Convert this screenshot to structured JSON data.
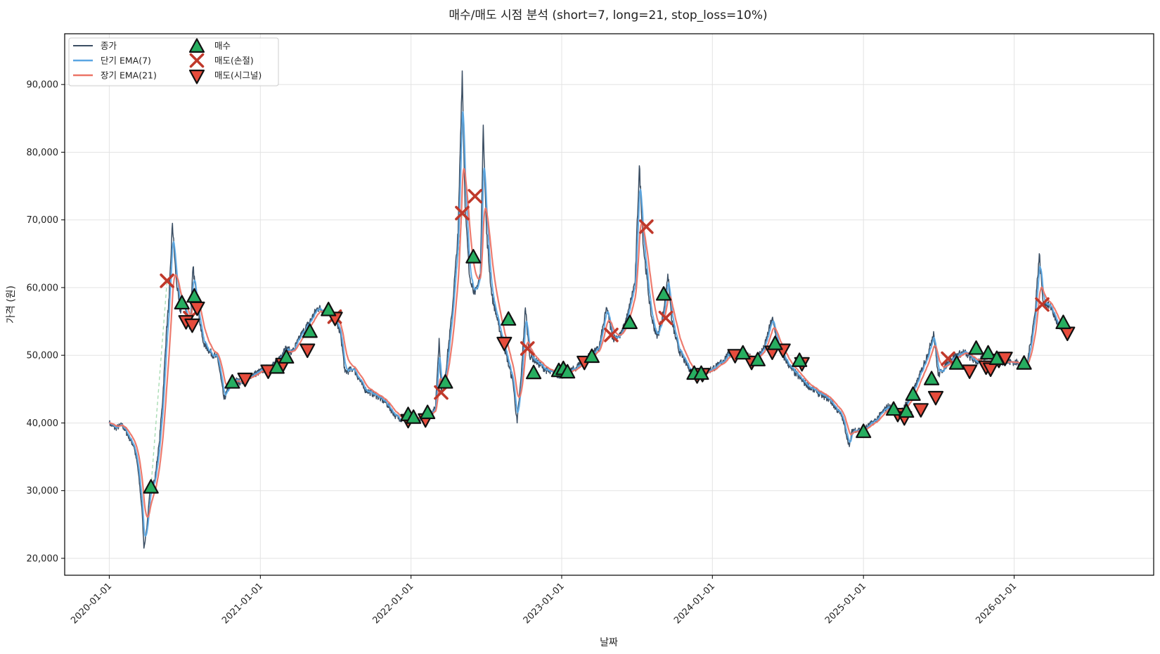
{
  "chart_data": {
    "type": "line",
    "title": "매수/매도 시점 분석 (short=7, long=21, stop_loss=10%)",
    "xlabel": "날짜",
    "ylabel": "가격 (원)",
    "ylim": [
      17500,
      97500
    ],
    "y_ticks": [
      20000,
      30000,
      40000,
      50000,
      60000,
      70000,
      80000,
      90000
    ],
    "y_tick_labels": [
      "20,000",
      "30,000",
      "40,000",
      "50,000",
      "60,000",
      "70,000",
      "80,000",
      "90,000"
    ],
    "xlim": [
      "2019-09-15",
      "2026-12-05"
    ],
    "x_ticks": [
      "2020-01-01",
      "2021-01-01",
      "2022-01-01",
      "2023-01-01",
      "2024-01-01",
      "2025-01-01",
      "2026-01-01"
    ],
    "x_tick_labels": [
      "2020-01-01",
      "2021-01-01",
      "2022-01-01",
      "2023-01-01",
      "2024-01-01",
      "2025-01-01",
      "2026-01-01"
    ],
    "grid": true,
    "legend_position": "top-left",
    "legend": [
      "종가",
      "단기 EMA(7)",
      "장기 EMA(21)",
      "매수",
      "매도(손절)",
      "매도(시그널)"
    ],
    "colors": {
      "close": "#3b4e63",
      "ema_short": "#5aa6e3",
      "ema_long": "#ec7466",
      "buy": "#27ae60",
      "sell_stop": "#c0392b",
      "sell_signal": "#e74c3c",
      "trade_link": "#a8dcb3"
    },
    "close_anchors": [
      [
        "2020-01-01",
        40000
      ],
      [
        "2020-01-15",
        39200
      ],
      [
        "2020-02-01",
        39700
      ],
      [
        "2020-02-15",
        38200
      ],
      [
        "2020-03-01",
        36500
      ],
      [
        "2020-03-10",
        33500
      ],
      [
        "2020-03-20",
        27500
      ],
      [
        "2020-03-25",
        21500
      ],
      [
        "2020-04-01",
        24500
      ],
      [
        "2020-04-10",
        30800
      ],
      [
        "2020-04-20",
        31500
      ],
      [
        "2020-05-01",
        37000
      ],
      [
        "2020-05-10",
        44000
      ],
      [
        "2020-05-18",
        53000
      ],
      [
        "2020-05-25",
        58500
      ],
      [
        "2020-06-02",
        69500
      ],
      [
        "2020-06-10",
        62000
      ],
      [
        "2020-06-20",
        56500
      ],
      [
        "2020-07-01",
        57500
      ],
      [
        "2020-07-08",
        55500
      ],
      [
        "2020-07-15",
        54000
      ],
      [
        "2020-07-22",
        63000
      ],
      [
        "2020-08-01",
        57500
      ],
      [
        "2020-08-15",
        52000
      ],
      [
        "2020-09-01",
        50500
      ],
      [
        "2020-09-20",
        49500
      ],
      [
        "2020-10-05",
        43500
      ],
      [
        "2020-10-25",
        46500
      ],
      [
        "2020-11-15",
        46000
      ],
      [
        "2020-12-10",
        47000
      ],
      [
        "2021-01-15",
        48000
      ],
      [
        "2021-02-10",
        49000
      ],
      [
        "2021-03-01",
        51000
      ],
      [
        "2021-03-20",
        50500
      ],
      [
        "2021-04-10",
        53000
      ],
      [
        "2021-05-01",
        55000
      ],
      [
        "2021-05-20",
        57000
      ],
      [
        "2021-06-10",
        56500
      ],
      [
        "2021-07-01",
        55500
      ],
      [
        "2021-07-15",
        53000
      ],
      [
        "2021-07-25",
        47500
      ],
      [
        "2021-08-15",
        48000
      ],
      [
        "2021-09-10",
        45000
      ],
      [
        "2021-10-10",
        44000
      ],
      [
        "2021-11-01",
        43000
      ],
      [
        "2021-11-25",
        41000
      ],
      [
        "2021-12-10",
        40500
      ],
      [
        "2022-01-01",
        41000
      ],
      [
        "2022-01-20",
        40500
      ],
      [
        "2022-02-10",
        41500
      ],
      [
        "2022-03-01",
        42000
      ],
      [
        "2022-03-10",
        52500
      ],
      [
        "2022-03-15",
        45000
      ],
      [
        "2022-03-25",
        47000
      ],
      [
        "2022-04-10",
        56000
      ],
      [
        "2022-04-25",
        68000
      ],
      [
        "2022-05-05",
        92000
      ],
      [
        "2022-05-12",
        72000
      ],
      [
        "2022-05-22",
        62000
      ],
      [
        "2022-06-05",
        59000
      ],
      [
        "2022-06-18",
        62000
      ],
      [
        "2022-06-25",
        84000
      ],
      [
        "2022-07-03",
        68000
      ],
      [
        "2022-07-15",
        59000
      ],
      [
        "2022-08-01",
        54500
      ],
      [
        "2022-08-20",
        50000
      ],
      [
        "2022-09-05",
        46000
      ],
      [
        "2022-09-15",
        40000
      ],
      [
        "2022-09-25",
        47000
      ],
      [
        "2022-10-05",
        57000
      ],
      [
        "2022-10-15",
        50000
      ],
      [
        "2022-11-01",
        49000
      ],
      [
        "2022-12-01",
        47500
      ],
      [
        "2023-01-01",
        47000
      ],
      [
        "2023-02-01",
        48000
      ],
      [
        "2023-03-01",
        49500
      ],
      [
        "2023-04-01",
        51000
      ],
      [
        "2023-04-20",
        57000
      ],
      [
        "2023-05-05",
        52500
      ],
      [
        "2023-05-25",
        53000
      ],
      [
        "2023-06-10",
        56000
      ],
      [
        "2023-06-28",
        61000
      ],
      [
        "2023-07-08",
        78000
      ],
      [
        "2023-07-18",
        66000
      ],
      [
        "2023-08-05",
        56000
      ],
      [
        "2023-08-20",
        52500
      ],
      [
        "2023-09-05",
        56500
      ],
      [
        "2023-09-15",
        62000
      ],
      [
        "2023-09-25",
        55000
      ],
      [
        "2023-10-10",
        51000
      ],
      [
        "2023-11-01",
        48500
      ],
      [
        "2023-11-20",
        47000
      ],
      [
        "2023-12-15",
        47500
      ],
      [
        "2024-01-15",
        48500
      ],
      [
        "2024-02-15",
        50500
      ],
      [
        "2024-03-15",
        50000
      ],
      [
        "2024-04-15",
        49500
      ],
      [
        "2024-05-05",
        51000
      ],
      [
        "2024-05-25",
        55500
      ],
      [
        "2024-06-10",
        51000
      ],
      [
        "2024-07-10",
        48000
      ],
      [
        "2024-08-10",
        46000
      ],
      [
        "2024-09-10",
        44500
      ],
      [
        "2024-10-10",
        43500
      ],
      [
        "2024-11-10",
        41000
      ],
      [
        "2024-11-28",
        36500
      ],
      [
        "2024-12-05",
        39000
      ],
      [
        "2025-01-01",
        39000
      ],
      [
        "2025-02-01",
        40500
      ],
      [
        "2025-03-01",
        42500
      ],
      [
        "2025-04-01",
        41500
      ],
      [
        "2025-05-01",
        44500
      ],
      [
        "2025-05-20",
        47500
      ],
      [
        "2025-06-10",
        51000
      ],
      [
        "2025-06-20",
        53500
      ],
      [
        "2025-07-01",
        47000
      ],
      [
        "2025-08-01",
        49500
      ],
      [
        "2025-09-01",
        50500
      ],
      [
        "2025-10-01",
        49000
      ],
      [
        "2025-11-01",
        50000
      ],
      [
        "2025-12-01",
        49000
      ],
      [
        "2026-01-01",
        49000
      ],
      [
        "2026-02-01",
        48500
      ],
      [
        "2026-02-20",
        56000
      ],
      [
        "2026-03-03",
        65000
      ],
      [
        "2026-03-12",
        58000
      ],
      [
        "2026-04-01",
        57000
      ],
      [
        "2026-04-20",
        54000
      ],
      [
        "2026-05-15",
        53500
      ]
    ],
    "buy_markers": [
      [
        "2020-04-11",
        30500
      ],
      [
        "2020-06-25",
        57700
      ],
      [
        "2020-07-25",
        58700
      ],
      [
        "2020-10-25",
        46000
      ],
      [
        "2021-02-10",
        48200
      ],
      [
        "2021-03-05",
        49700
      ],
      [
        "2021-05-01",
        53500
      ],
      [
        "2021-06-15",
        56700
      ],
      [
        "2021-12-25",
        41200
      ],
      [
        "2022-01-07",
        40800
      ],
      [
        "2022-02-10",
        41500
      ],
      [
        "2022-03-25",
        46000
      ],
      [
        "2022-06-01",
        64500
      ],
      [
        "2022-08-25",
        55300
      ],
      [
        "2022-10-25",
        47400
      ],
      [
        "2022-12-25",
        47700
      ],
      [
        "2023-01-05",
        48000
      ],
      [
        "2023-01-15",
        47500
      ],
      [
        "2023-03-15",
        49800
      ],
      [
        "2023-06-15",
        54800
      ],
      [
        "2023-09-05",
        59000
      ],
      [
        "2023-11-18",
        47300
      ],
      [
        "2023-12-05",
        47300
      ],
      [
        "2024-03-15",
        50300
      ],
      [
        "2024-04-20",
        49300
      ],
      [
        "2024-06-01",
        51700
      ],
      [
        "2024-07-30",
        49200
      ],
      [
        "2025-01-01",
        38700
      ],
      [
        "2025-03-15",
        42000
      ],
      [
        "2025-04-15",
        41700
      ],
      [
        "2025-05-01",
        44200
      ],
      [
        "2025-06-15",
        46500
      ],
      [
        "2025-08-15",
        48800
      ],
      [
        "2025-10-01",
        51000
      ],
      [
        "2025-10-30",
        50300
      ],
      [
        "2025-11-20",
        49500
      ],
      [
        "2026-01-25",
        48800
      ],
      [
        "2026-04-30",
        54800
      ]
    ],
    "stop_loss_markers": [
      [
        "2020-05-20",
        61000
      ],
      [
        "2020-07-15",
        55500
      ],
      [
        "2021-06-30",
        55700
      ],
      [
        "2022-03-15",
        44500
      ],
      [
        "2022-05-05",
        71000
      ],
      [
        "2022-06-05",
        73500
      ],
      [
        "2022-10-10",
        51000
      ],
      [
        "2023-05-01",
        53000
      ],
      [
        "2023-07-25",
        69000
      ],
      [
        "2023-09-10",
        55500
      ],
      [
        "2025-07-25",
        49500
      ],
      [
        "2026-03-10",
        57500
      ]
    ],
    "signal_sell_markers": [
      [
        "2020-07-05",
        55000
      ],
      [
        "2020-07-20",
        54500
      ],
      [
        "2020-08-01",
        57000
      ],
      [
        "2020-11-25",
        46500
      ],
      [
        "2021-01-20",
        47700
      ],
      [
        "2021-02-25",
        48700
      ],
      [
        "2021-04-25",
        50800
      ],
      [
        "2021-07-01",
        55500
      ],
      [
        "2021-12-25",
        40400
      ],
      [
        "2022-02-05",
        40500
      ],
      [
        "2022-08-15",
        51800
      ],
      [
        "2023-02-25",
        49000
      ],
      [
        "2023-11-25",
        47000
      ],
      [
        "2023-12-08",
        47200
      ],
      [
        "2024-02-25",
        50000
      ],
      [
        "2024-04-05",
        49000
      ],
      [
        "2024-05-25",
        50500
      ],
      [
        "2024-06-20",
        50800
      ],
      [
        "2024-08-05",
        48800
      ],
      [
        "2025-03-25",
        41300
      ],
      [
        "2025-04-10",
        40800
      ],
      [
        "2025-05-20",
        42000
      ],
      [
        "2025-06-25",
        43800
      ],
      [
        "2025-09-15",
        47700
      ],
      [
        "2025-10-25",
        48300
      ],
      [
        "2025-11-05",
        48000
      ],
      [
        "2025-11-25",
        49300
      ],
      [
        "2025-12-10",
        49600
      ],
      [
        "2026-05-10",
        53300
      ]
    ],
    "trade_links": [
      [
        [
          "2020-04-11",
          30500
        ],
        [
          "2020-05-20",
          61000
        ]
      ],
      [
        [
          "2022-03-25",
          46000
        ],
        [
          "2022-05-05",
          71000
        ]
      ]
    ]
  }
}
